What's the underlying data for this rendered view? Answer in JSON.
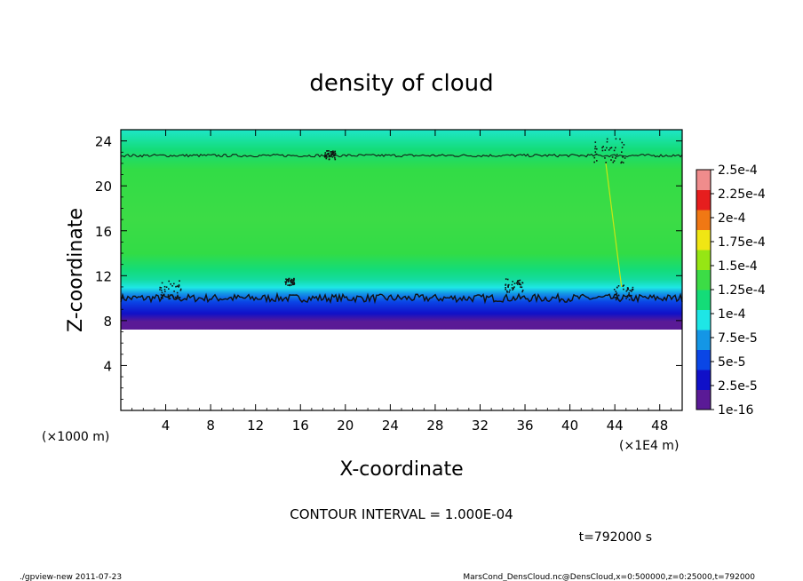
{
  "chart_data": {
    "type": "heatmap",
    "title": "density of cloud",
    "xlabel": "X-coordinate",
    "ylabel": "Z-coordinate",
    "x_unit_left": "(×1000 m)",
    "x_unit_right": "(×1E4 m)",
    "xlim": [
      0,
      50
    ],
    "ylim": [
      0,
      25
    ],
    "x_ticks": [
      "4",
      "8",
      "12",
      "16",
      "20",
      "24",
      "28",
      "32",
      "36",
      "40",
      "44",
      "48"
    ],
    "y_ticks": [
      "4",
      "8",
      "12",
      "16",
      "20",
      "24"
    ],
    "contour_interval": "CONTOUR INTERVAL = 1.000E-04",
    "time_label": "t=792000 s",
    "legend": {
      "labels": [
        "1e-16",
        "2.5e-5",
        "5e-5",
        "7.5e-5",
        "1e-4",
        "1.25e-4",
        "1.5e-4",
        "1.75e-4",
        "2e-4",
        "2.25e-4",
        "2.5e-4"
      ],
      "colors": [
        "#5a1a96",
        "#1010c8",
        "#0a46e6",
        "#1496e6",
        "#1ee6e6",
        "#14dc78",
        "#3cdc46",
        "#96e614",
        "#f0e614",
        "#f07814",
        "#e61e1e",
        "#f08c8c"
      ]
    },
    "profile": {
      "z": [
        7.2,
        7.8,
        8.4,
        8.9,
        9.4,
        10.0,
        12.0,
        16.0,
        20.0,
        22.4,
        23.0,
        25.0
      ],
      "density": [
        1e-16,
        2.5e-05,
        5e-05,
        7.5e-05,
        8.5e-05,
        0.0001,
        0.00012,
        0.000135,
        0.000125,
        0.000105,
        9e-05,
        8e-05
      ]
    },
    "contour_levels_z": [
      {
        "level": 0.0001,
        "z": 10.0
      },
      {
        "level": 0.0001,
        "z": 22.7
      }
    ]
  },
  "footer_left": "./gpview-new  2011-07-23",
  "footer_right": "MarsCond_DensCloud.nc@DensCloud,x=0:500000,z=0:25000,t=792000"
}
